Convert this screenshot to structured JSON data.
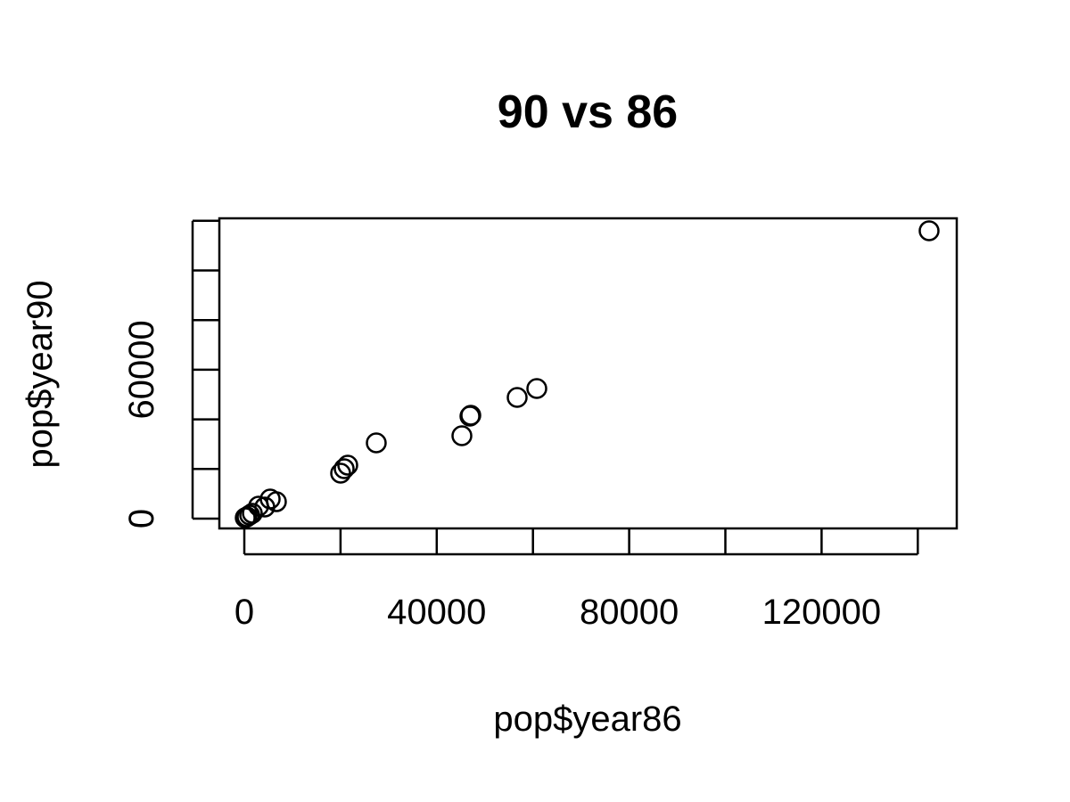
{
  "chart_data": {
    "type": "scatter",
    "title": "90 vs 86",
    "xlabel": "pop$year86",
    "ylabel": "pop$year90",
    "color": "#000000",
    "series": [
      {
        "x": [
          142350,
          60800,
          56720,
          47080,
          46900,
          45230,
          27430,
          21500,
          20760,
          20020,
          6670,
          5380,
          4260,
          2970,
          1670,
          1110,
          560,
          190
        ],
        "values": [
          115980,
          52420,
          48830,
          41650,
          41290,
          33390,
          30520,
          21540,
          20110,
          18310,
          6820,
          7900,
          4670,
          5030,
          2150,
          1440,
          720,
          360
        ]
      }
    ],
    "xlim": [
      -5190,
      148100
    ],
    "xticks": [
      0,
      {
        "value": 20000,
        "label": null
      },
      40000,
      {
        "value": 60000,
        "label": null
      },
      80000,
      {
        "value": 100000,
        "label": null
      },
      120000,
      {
        "value": 140000,
        "label": null
      }
    ],
    "ylim": [
      -3950,
      121000
    ],
    "yticks": [
      0,
      {
        "value": 20000,
        "label": null
      },
      {
        "value": 40000,
        "label": null
      },
      60000,
      {
        "value": 80000,
        "label": null
      },
      {
        "value": 100000,
        "label": null
      },
      {
        "value": 120000,
        "label": null
      }
    ]
  }
}
